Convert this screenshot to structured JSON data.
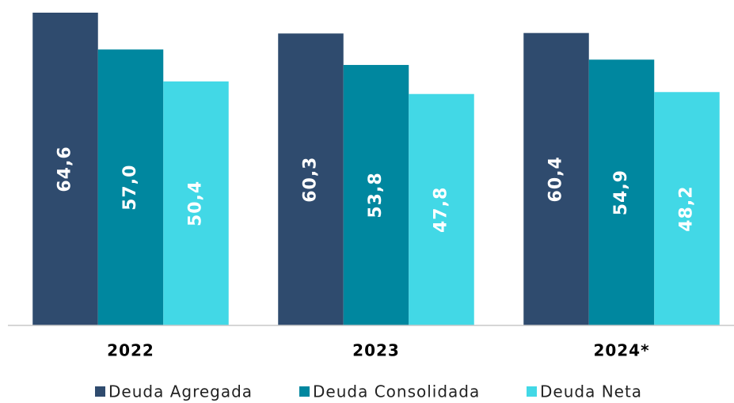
{
  "chart_data": {
    "type": "bar",
    "categories": [
      "2022",
      "2023",
      "2024*"
    ],
    "series": [
      {
        "name": "Deuda Agregada",
        "color": "#2f4b6e",
        "values": [
          64.6,
          60.3,
          60.4
        ],
        "value_labels": [
          "64,6",
          "60,3",
          "60,4"
        ]
      },
      {
        "name": "Deuda Consolidada",
        "color": "#00879f",
        "values": [
          57.0,
          53.8,
          54.9
        ],
        "value_labels": [
          "57,0",
          "53,8",
          "54,9"
        ]
      },
      {
        "name": "Deuda Neta",
        "color": "#42d8e6",
        "values": [
          50.4,
          47.8,
          48.2
        ],
        "value_labels": [
          "50,4",
          "47,8",
          "48,2"
        ]
      }
    ],
    "legend": "bottom"
  }
}
